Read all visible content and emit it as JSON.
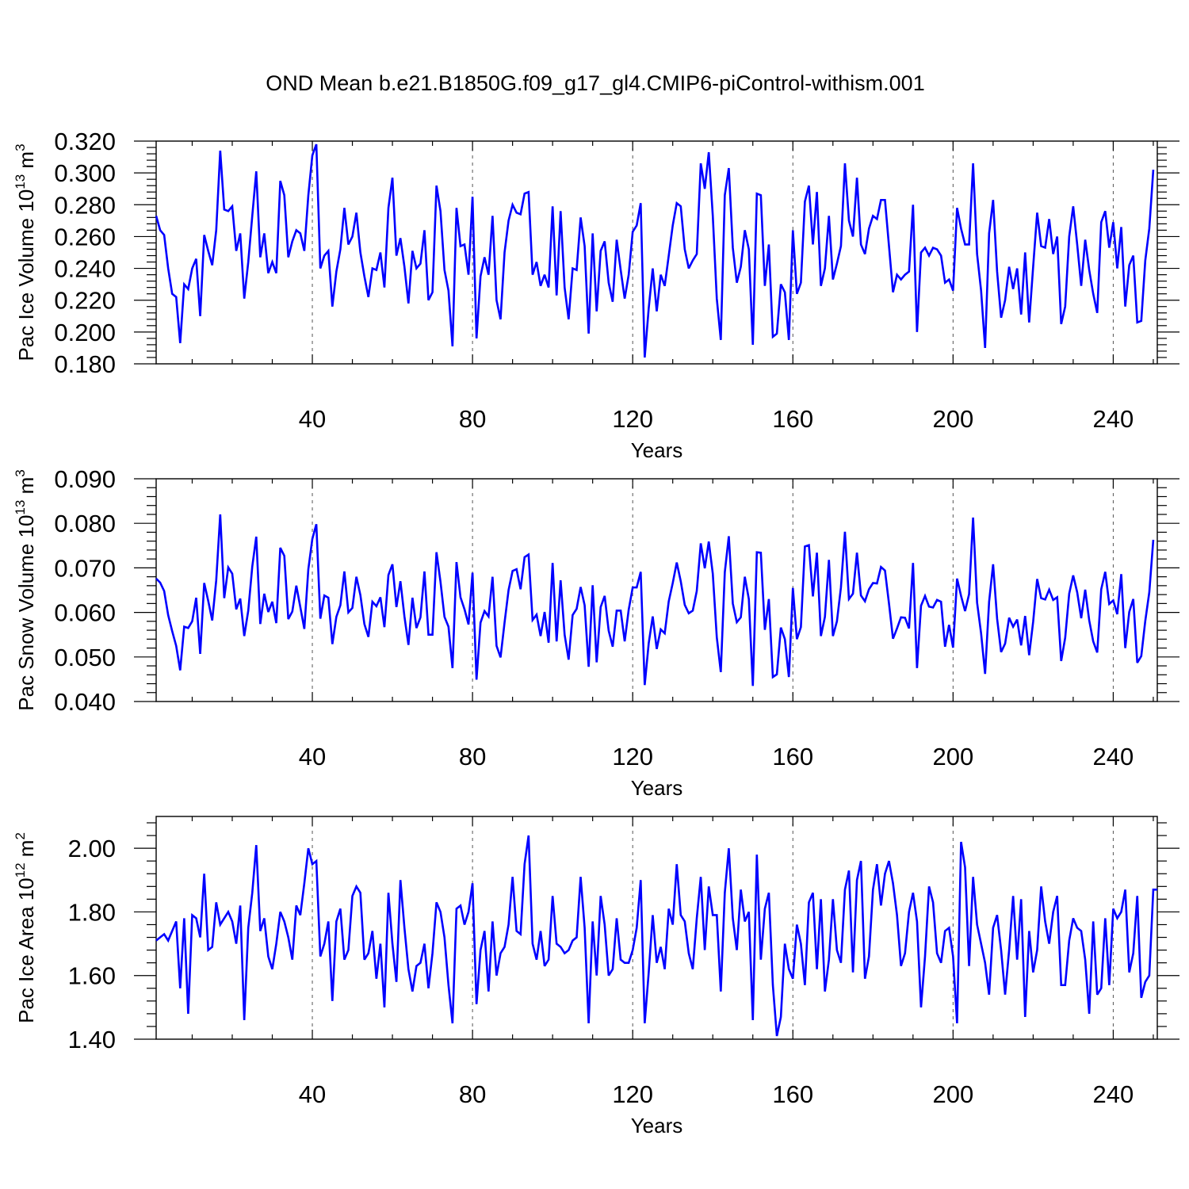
{
  "title": "OND Mean b.e21.B1850G.f09_g17_gl4.CMIP6-piControl-withism.001",
  "colors": {
    "series": "#0000ff",
    "axis": "#000000",
    "grid": "#555555"
  },
  "chart_data": [
    {
      "type": "line",
      "name": "pac-ice-volume",
      "ylabel_text": "Pac Ice Volume 10",
      "ylabel_exp": "13",
      "ylabel_unit": " m",
      "ylabel_unit_exp": "3",
      "xlabel": "Years",
      "xlim": [
        1,
        251
      ],
      "ylim": [
        0.18,
        0.32
      ],
      "xticks": [
        40,
        80,
        120,
        160,
        200,
        240
      ],
      "yticks": [
        "0.180",
        "0.200",
        "0.220",
        "0.240",
        "0.260",
        "0.280",
        "0.300",
        "0.320"
      ],
      "grid": "vertical dashed at major x ticks",
      "series": [
        {
          "name": "Pac Ice Volume",
          "x_start": 1,
          "values": [
            0.273,
            0.264,
            0.261,
            0.24,
            0.224,
            0.222,
            0.193,
            0.23,
            0.227,
            0.24,
            0.246,
            0.21,
            0.261,
            0.251,
            0.242,
            0.264,
            0.314,
            0.277,
            0.276,
            0.279,
            0.251,
            0.262,
            0.221,
            0.244,
            0.273,
            0.301,
            0.247,
            0.262,
            0.237,
            0.244,
            0.237,
            0.295,
            0.286,
            0.247,
            0.257,
            0.264,
            0.262,
            0.251,
            0.286,
            0.311,
            0.318,
            0.24,
            0.248,
            0.251,
            0.216,
            0.238,
            0.252,
            0.278,
            0.255,
            0.26,
            0.275,
            0.25,
            0.235,
            0.222,
            0.24,
            0.239,
            0.25,
            0.228,
            0.278,
            0.297,
            0.248,
            0.259,
            0.241,
            0.218,
            0.251,
            0.24,
            0.243,
            0.264,
            0.22,
            0.225,
            0.292,
            0.276,
            0.239,
            0.226,
            0.191,
            0.278,
            0.254,
            0.255,
            0.236,
            0.285,
            0.196,
            0.235,
            0.247,
            0.236,
            0.273,
            0.22,
            0.208,
            0.25,
            0.27,
            0.28,
            0.275,
            0.274,
            0.287,
            0.288,
            0.236,
            0.244,
            0.229,
            0.236,
            0.228,
            0.279,
            0.223,
            0.276,
            0.228,
            0.208,
            0.24,
            0.239,
            0.272,
            0.254,
            0.199,
            0.262,
            0.213,
            0.251,
            0.257,
            0.231,
            0.219,
            0.258,
            0.239,
            0.221,
            0.236,
            0.263,
            0.267,
            0.281,
            0.184,
            0.215,
            0.24,
            0.213,
            0.236,
            0.229,
            0.248,
            0.267,
            0.281,
            0.279,
            0.252,
            0.24,
            0.245,
            0.249,
            0.306,
            0.29,
            0.313,
            0.273,
            0.221,
            0.195,
            0.286,
            0.303,
            0.253,
            0.231,
            0.241,
            0.264,
            0.252,
            0.192,
            0.287,
            0.286,
            0.229,
            0.255,
            0.197,
            0.199,
            0.23,
            0.225,
            0.195,
            0.264,
            0.224,
            0.231,
            0.282,
            0.292,
            0.255,
            0.288,
            0.229,
            0.24,
            0.273,
            0.233,
            0.243,
            0.254,
            0.306,
            0.27,
            0.26,
            0.297,
            0.255,
            0.249,
            0.265,
            0.273,
            0.271,
            0.283,
            0.283,
            0.254,
            0.225,
            0.236,
            0.233,
            0.236,
            0.238,
            0.28,
            0.2,
            0.25,
            0.253,
            0.248,
            0.253,
            0.252,
            0.248,
            0.231,
            0.233,
            0.226,
            0.278,
            0.265,
            0.255,
            0.255,
            0.306,
            0.249,
            0.226,
            0.19,
            0.262,
            0.283,
            0.238,
            0.209,
            0.22,
            0.241,
            0.227,
            0.24,
            0.211,
            0.25,
            0.206,
            0.241,
            0.275,
            0.254,
            0.253,
            0.271,
            0.249,
            0.26,
            0.205,
            0.216,
            0.26,
            0.279,
            0.255,
            0.229,
            0.258,
            0.239,
            0.224,
            0.212,
            0.269,
            0.276,
            0.253,
            0.269,
            0.24,
            0.266,
            0.216,
            0.242,
            0.248,
            0.206,
            0.207,
            0.245,
            0.265,
            0.302
          ]
        }
      ]
    },
    {
      "type": "line",
      "name": "pac-snow-volume",
      "ylabel_text": "Pac Snow Volume 10",
      "ylabel_exp": "13",
      "ylabel_unit": " m",
      "ylabel_unit_exp": "3",
      "xlabel": "Years",
      "xlim": [
        1,
        251
      ],
      "ylim": [
        0.04,
        0.09
      ],
      "xticks": [
        40,
        80,
        120,
        160,
        200,
        240
      ],
      "yticks": [
        "0.040",
        "0.050",
        "0.060",
        "0.070",
        "0.080",
        "0.090"
      ],
      "grid": "vertical dashed at major x ticks",
      "series": [
        {
          "name": "Pac Snow Volume",
          "x_start": 1,
          "values": [
            0.0676,
            0.0667,
            0.0648,
            0.0594,
            0.0558,
            0.0525,
            0.047,
            0.0568,
            0.0565,
            0.058,
            0.0633,
            0.0507,
            0.0666,
            0.0626,
            0.0582,
            0.0672,
            0.082,
            0.0632,
            0.0701,
            0.0687,
            0.0607,
            0.0631,
            0.0547,
            0.0604,
            0.0703,
            0.077,
            0.0574,
            0.0642,
            0.0601,
            0.0624,
            0.0576,
            0.0745,
            0.0727,
            0.0585,
            0.0602,
            0.066,
            0.0612,
            0.0563,
            0.0697,
            0.0765,
            0.0798,
            0.0586,
            0.0638,
            0.0633,
            0.0529,
            0.059,
            0.0616,
            0.0692,
            0.06,
            0.061,
            0.068,
            0.0639,
            0.0574,
            0.0545,
            0.0624,
            0.0614,
            0.0634,
            0.0567,
            0.0684,
            0.0708,
            0.0612,
            0.067,
            0.0591,
            0.0527,
            0.0633,
            0.0565,
            0.0589,
            0.0692,
            0.055,
            0.055,
            0.0735,
            0.0669,
            0.059,
            0.0568,
            0.0475,
            0.0713,
            0.0634,
            0.0607,
            0.0573,
            0.0689,
            0.0449,
            0.0577,
            0.0603,
            0.0591,
            0.068,
            0.0525,
            0.0499,
            0.0577,
            0.065,
            0.0693,
            0.0697,
            0.0652,
            0.0724,
            0.073,
            0.0583,
            0.0595,
            0.0547,
            0.0601,
            0.0532,
            0.0711,
            0.0535,
            0.0672,
            0.055,
            0.0494,
            0.0594,
            0.0608,
            0.0657,
            0.0616,
            0.0478,
            0.0661,
            0.0488,
            0.0612,
            0.0637,
            0.0559,
            0.0523,
            0.0604,
            0.0604,
            0.0535,
            0.0606,
            0.0656,
            0.0656,
            0.0691,
            0.0437,
            0.0531,
            0.0591,
            0.0518,
            0.0562,
            0.0553,
            0.0625,
            0.0666,
            0.0712,
            0.067,
            0.0617,
            0.0598,
            0.0604,
            0.0648,
            0.0755,
            0.0699,
            0.0759,
            0.0687,
            0.0544,
            0.0466,
            0.069,
            0.0771,
            0.062,
            0.0578,
            0.0589,
            0.068,
            0.063,
            0.0435,
            0.0735,
            0.0734,
            0.0561,
            0.063,
            0.0455,
            0.0461,
            0.0566,
            0.054,
            0.0455,
            0.0655,
            0.054,
            0.0567,
            0.0748,
            0.0751,
            0.0636,
            0.0734,
            0.0547,
            0.059,
            0.0718,
            0.0547,
            0.058,
            0.0656,
            0.0781,
            0.063,
            0.0642,
            0.0734,
            0.0638,
            0.0625,
            0.0652,
            0.0666,
            0.0665,
            0.0702,
            0.0694,
            0.062,
            0.0541,
            0.0564,
            0.0589,
            0.0588,
            0.0564,
            0.0711,
            0.0475,
            0.0615,
            0.0637,
            0.0613,
            0.0611,
            0.0628,
            0.0624,
            0.0523,
            0.0572,
            0.0521,
            0.0676,
            0.0637,
            0.0603,
            0.0641,
            0.0813,
            0.0622,
            0.0553,
            0.0462,
            0.0624,
            0.0708,
            0.0586,
            0.0511,
            0.053,
            0.0588,
            0.0568,
            0.0584,
            0.0526,
            0.0592,
            0.0504,
            0.0579,
            0.0675,
            0.0632,
            0.0629,
            0.0651,
            0.0628,
            0.0634,
            0.0491,
            0.0543,
            0.0642,
            0.0683,
            0.0645,
            0.0587,
            0.0651,
            0.0582,
            0.0535,
            0.051,
            0.0652,
            0.0691,
            0.0619,
            0.0627,
            0.0596,
            0.0686,
            0.052,
            0.0601,
            0.063,
            0.0487,
            0.0502,
            0.0581,
            0.0645,
            0.0763
          ]
        }
      ]
    },
    {
      "type": "line",
      "name": "pac-ice-area",
      "ylabel_text": "Pac Ice Area 10",
      "ylabel_exp": "12",
      "ylabel_unit": " m",
      "ylabel_unit_exp": "2",
      "xlabel": "Years",
      "xlim": [
        1,
        251
      ],
      "ylim": [
        1.4,
        2.1
      ],
      "xticks": [
        40,
        80,
        120,
        160,
        200,
        240
      ],
      "yticks": [
        "1.40",
        "1.60",
        "1.80",
        "2.00"
      ],
      "grid": "vertical dashed at major x ticks",
      "series": [
        {
          "name": "Pac Ice Area",
          "x_start": 1,
          "values": [
            1.71,
            1.72,
            1.73,
            1.71,
            1.74,
            1.77,
            1.56,
            1.78,
            1.48,
            1.79,
            1.78,
            1.72,
            1.92,
            1.68,
            1.69,
            1.83,
            1.76,
            1.78,
            1.8,
            1.77,
            1.7,
            1.82,
            1.46,
            1.75,
            1.86,
            2.01,
            1.74,
            1.78,
            1.66,
            1.62,
            1.7,
            1.8,
            1.77,
            1.72,
            1.65,
            1.82,
            1.79,
            1.89,
            2.0,
            1.95,
            1.96,
            1.66,
            1.7,
            1.77,
            1.52,
            1.77,
            1.81,
            1.65,
            1.68,
            1.85,
            1.88,
            1.86,
            1.65,
            1.67,
            1.74,
            1.59,
            1.7,
            1.5,
            1.86,
            1.7,
            1.58,
            1.9,
            1.75,
            1.62,
            1.55,
            1.63,
            1.64,
            1.7,
            1.56,
            1.67,
            1.83,
            1.8,
            1.72,
            1.57,
            1.45,
            1.81,
            1.82,
            1.76,
            1.8,
            1.89,
            1.51,
            1.68,
            1.74,
            1.55,
            1.77,
            1.6,
            1.67,
            1.69,
            1.76,
            1.91,
            1.74,
            1.73,
            1.95,
            2.04,
            1.7,
            1.65,
            1.74,
            1.63,
            1.65,
            1.85,
            1.7,
            1.69,
            1.67,
            1.68,
            1.71,
            1.72,
            1.91,
            1.75,
            1.45,
            1.77,
            1.6,
            1.85,
            1.76,
            1.6,
            1.62,
            1.78,
            1.65,
            1.64,
            1.64,
            1.68,
            1.75,
            1.9,
            1.45,
            1.61,
            1.79,
            1.64,
            1.69,
            1.62,
            1.81,
            1.76,
            1.95,
            1.79,
            1.77,
            1.67,
            1.62,
            1.78,
            1.91,
            1.68,
            1.88,
            1.79,
            1.79,
            1.55,
            1.86,
            2.0,
            1.78,
            1.68,
            1.87,
            1.77,
            1.8,
            1.46,
            1.98,
            1.65,
            1.81,
            1.86,
            1.57,
            1.41,
            1.47,
            1.7,
            1.62,
            1.59,
            1.76,
            1.7,
            1.57,
            1.83,
            1.86,
            1.62,
            1.84,
            1.55,
            1.65,
            1.84,
            1.68,
            1.64,
            1.87,
            1.93,
            1.61,
            1.9,
            1.96,
            1.59,
            1.66,
            1.87,
            1.95,
            1.82,
            1.92,
            1.96,
            1.89,
            1.79,
            1.63,
            1.67,
            1.8,
            1.86,
            1.77,
            1.5,
            1.66,
            1.88,
            1.83,
            1.67,
            1.64,
            1.74,
            1.75,
            1.66,
            1.45,
            2.02,
            1.94,
            1.63,
            1.91,
            1.76,
            1.7,
            1.64,
            1.54,
            1.75,
            1.79,
            1.68,
            1.54,
            1.68,
            1.85,
            1.65,
            1.84,
            1.47,
            1.74,
            1.61,
            1.68,
            1.88,
            1.77,
            1.7,
            1.8,
            1.85,
            1.57,
            1.57,
            1.71,
            1.78,
            1.75,
            1.74,
            1.65,
            1.48,
            1.77,
            1.54,
            1.56,
            1.78,
            1.57,
            1.81,
            1.78,
            1.8,
            1.87,
            1.61,
            1.67,
            1.85,
            1.53,
            1.58,
            1.6,
            1.87,
            1.87
          ]
        }
      ]
    }
  ]
}
